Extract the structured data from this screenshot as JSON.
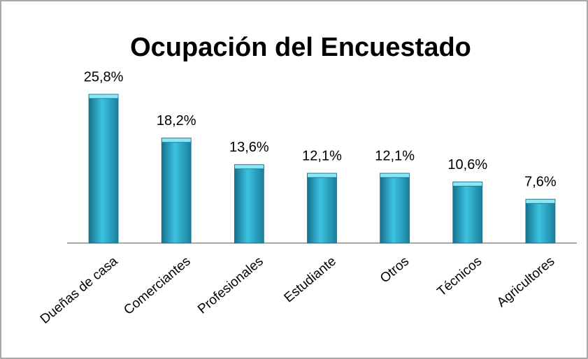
{
  "chart_data": {
    "type": "bar",
    "title": "Ocupación del Encuestado",
    "categories": [
      "Dueñas de casa",
      "Comerciantes",
      "Profesionales",
      "Estudiante",
      "Otros",
      "Técnicos",
      "Agricultores"
    ],
    "values": [
      25.8,
      18.2,
      13.6,
      12.1,
      12.1,
      10.6,
      7.6
    ],
    "value_labels": [
      "25,8%",
      "18,2%",
      "13,6%",
      "12,1%",
      "12,1%",
      "10,6%",
      "7,6%"
    ],
    "color": "#3cc3e0"
  }
}
